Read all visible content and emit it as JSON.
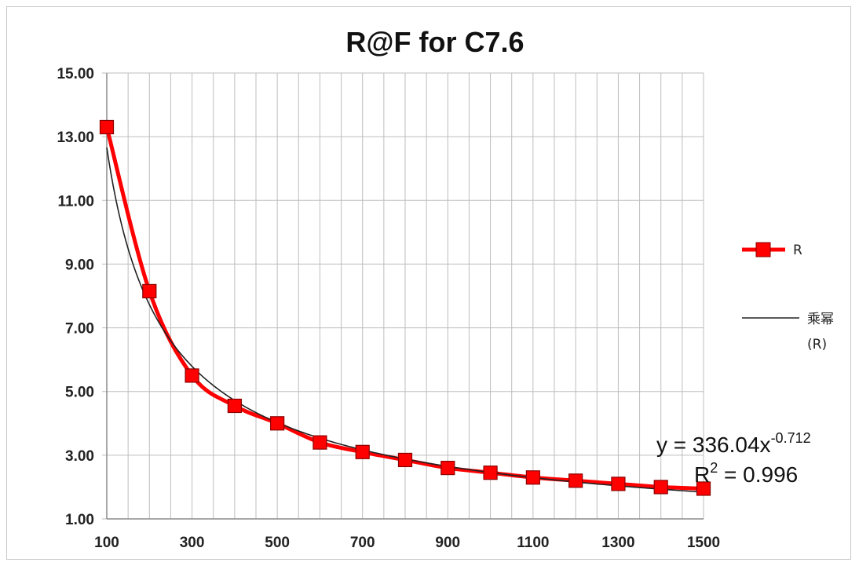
{
  "chart_data": {
    "type": "line",
    "title": "R@F for C7.6",
    "x": [
      100,
      200,
      300,
      400,
      500,
      600,
      700,
      800,
      900,
      1000,
      1100,
      1200,
      1300,
      1400,
      1500
    ],
    "series": [
      {
        "name": "R",
        "values": [
          13.3,
          8.15,
          5.5,
          4.55,
          4.0,
          3.4,
          3.1,
          2.85,
          2.6,
          2.45,
          2.3,
          2.2,
          2.1,
          2.0,
          1.95
        ],
        "color": "#ff0000"
      }
    ],
    "trendline": {
      "type": "power",
      "legend_label_line1": "乘幂",
      "legend_label_line2": "(R)",
      "coefficient": 336.04,
      "exponent": -0.712,
      "color": "#222222",
      "equation_prefix": "y = 336.04x",
      "equation_exponent": "-0.712",
      "r2_prefix": "R",
      "r2_sup": "2",
      "r2_value": " = 0.996"
    },
    "xlim": [
      100,
      1500
    ],
    "ylim": [
      1,
      15
    ],
    "x_ticks": [
      "100",
      "300",
      "500",
      "700",
      "900",
      "1100",
      "1300",
      "1500"
    ],
    "x_tick_values": [
      100,
      300,
      500,
      700,
      900,
      1100,
      1300,
      1500
    ],
    "y_ticks": [
      "1.00",
      "3.00",
      "5.00",
      "7.00",
      "9.00",
      "11.00",
      "13.00",
      "15.00"
    ],
    "y_tick_values": [
      1,
      3,
      5,
      7,
      9,
      11,
      13,
      15
    ],
    "grid": true,
    "legend_position": "right",
    "xlabel": "",
    "ylabel": ""
  }
}
